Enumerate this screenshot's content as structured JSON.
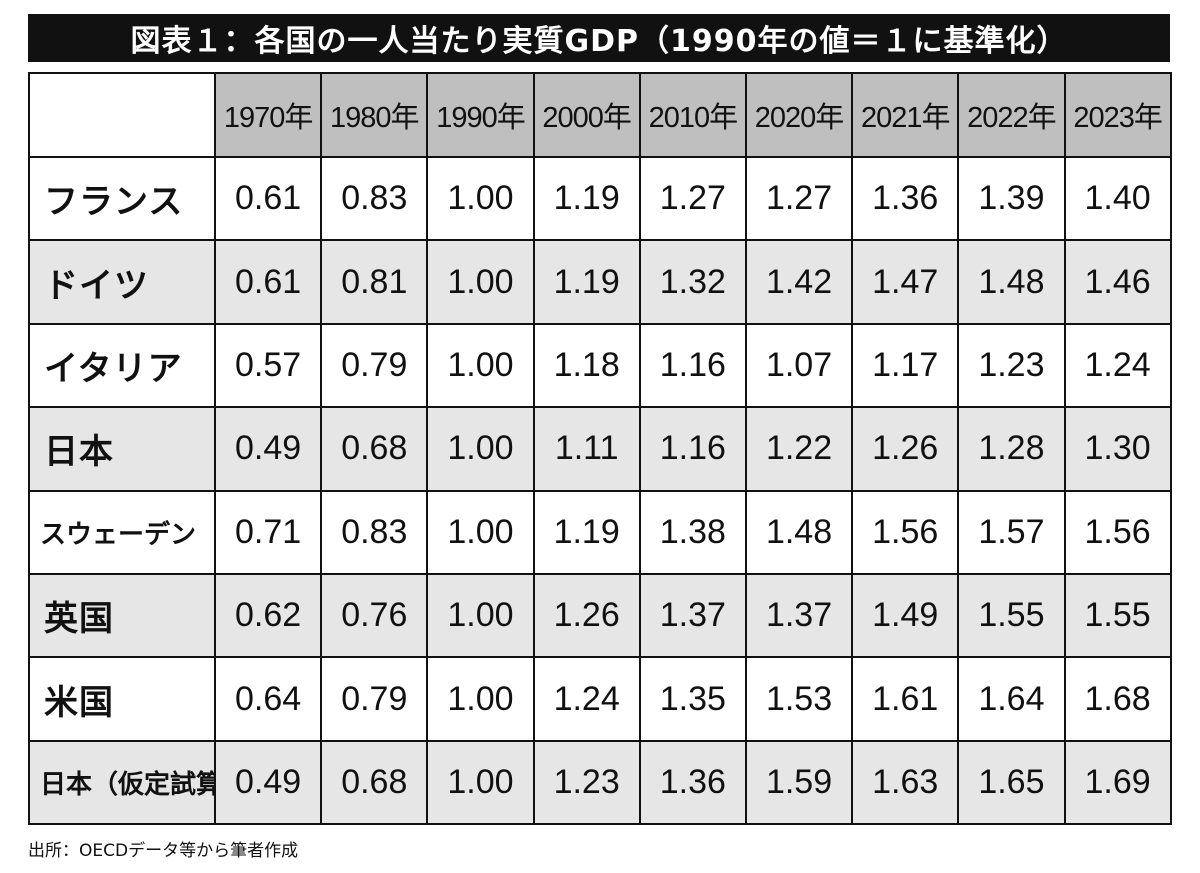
{
  "title": "図表１：各国の一人当たり実質GDP（1990年の値＝１に基準化）",
  "source": "出所：OECDデータ等から筆者作成",
  "chart_data": {
    "type": "table",
    "columns": [
      "1970年",
      "1980年",
      "1990年",
      "2000年",
      "2010年",
      "2020年",
      "2021年",
      "2022年",
      "2023年"
    ],
    "rows": [
      {
        "name": "フランス",
        "values": [
          "0.61",
          "0.83",
          "1.00",
          "1.19",
          "1.27",
          "1.27",
          "1.36",
          "1.39",
          "1.40"
        ]
      },
      {
        "name": "ドイツ",
        "values": [
          "0.61",
          "0.81",
          "1.00",
          "1.19",
          "1.32",
          "1.42",
          "1.47",
          "1.48",
          "1.46"
        ]
      },
      {
        "name": "イタリア",
        "values": [
          "0.57",
          "0.79",
          "1.00",
          "1.18",
          "1.16",
          "1.07",
          "1.17",
          "1.23",
          "1.24"
        ]
      },
      {
        "name": "日本",
        "values": [
          "0.49",
          "0.68",
          "1.00",
          "1.11",
          "1.16",
          "1.22",
          "1.26",
          "1.28",
          "1.30"
        ]
      },
      {
        "name": "スウェーデン",
        "values": [
          "0.71",
          "0.83",
          "1.00",
          "1.19",
          "1.38",
          "1.48",
          "1.56",
          "1.57",
          "1.56"
        ]
      },
      {
        "name": "英国",
        "values": [
          "0.62",
          "0.76",
          "1.00",
          "1.26",
          "1.37",
          "1.37",
          "1.49",
          "1.55",
          "1.55"
        ]
      },
      {
        "name": "米国",
        "values": [
          "0.64",
          "0.79",
          "1.00",
          "1.24",
          "1.35",
          "1.53",
          "1.61",
          "1.64",
          "1.68"
        ]
      },
      {
        "name": "日本（仮定試算）",
        "values": [
          "0.49",
          "0.68",
          "1.00",
          "1.23",
          "1.36",
          "1.59",
          "1.63",
          "1.65",
          "1.69"
        ]
      }
    ]
  }
}
